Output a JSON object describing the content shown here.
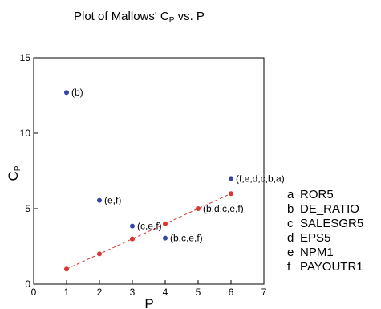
{
  "chart_data": {
    "type": "scatter",
    "title": "Plot of Mallows' C",
    "title_sub": "P",
    "title_tail": " vs. P",
    "xlabel": "P",
    "ylabel": "C",
    "ylabel_sub": "P",
    "xlim": [
      0,
      7
    ],
    "ylim": [
      0,
      15
    ],
    "x_ticks": [
      0,
      1,
      2,
      3,
      4,
      5,
      6,
      7
    ],
    "y_ticks": [
      0,
      5,
      10,
      15
    ],
    "grid": false,
    "series": [
      {
        "kind": "points",
        "color": "#3344aa",
        "points": [
          {
            "x": 1,
            "y": 12.7,
            "label": "(b)"
          },
          {
            "x": 2,
            "y": 5.55,
            "label": "(e,f)"
          },
          {
            "x": 3,
            "y": 3.85,
            "label": "(c,e,f)"
          },
          {
            "x": 4,
            "y": 3.05,
            "label": "(b,c,e,f)"
          },
          {
            "x": 6,
            "y": 7.0,
            "label": "(f,e,d,c,b,a)"
          }
        ]
      },
      {
        "kind": "reference-line",
        "color": "#dd3333",
        "line_style": "dashed",
        "points": [
          {
            "x": 1,
            "y": 1
          },
          {
            "x": 2,
            "y": 2
          },
          {
            "x": 3,
            "y": 3
          },
          {
            "x": 4,
            "y": 4
          },
          {
            "x": 5,
            "y": 5,
            "label": "(b,d,c,e,f)"
          },
          {
            "x": 6,
            "y": 6
          }
        ]
      }
    ],
    "legend": {
      "placement": "right",
      "items": [
        {
          "key": "a",
          "name": "ROR5"
        },
        {
          "key": "b",
          "name": "DE_RATIO"
        },
        {
          "key": "c",
          "name": "SALESGR5"
        },
        {
          "key": "d",
          "name": "EPS5"
        },
        {
          "key": "e",
          "name": "NPM1"
        },
        {
          "key": "f",
          "name": "PAYOUTR1"
        }
      ]
    }
  }
}
